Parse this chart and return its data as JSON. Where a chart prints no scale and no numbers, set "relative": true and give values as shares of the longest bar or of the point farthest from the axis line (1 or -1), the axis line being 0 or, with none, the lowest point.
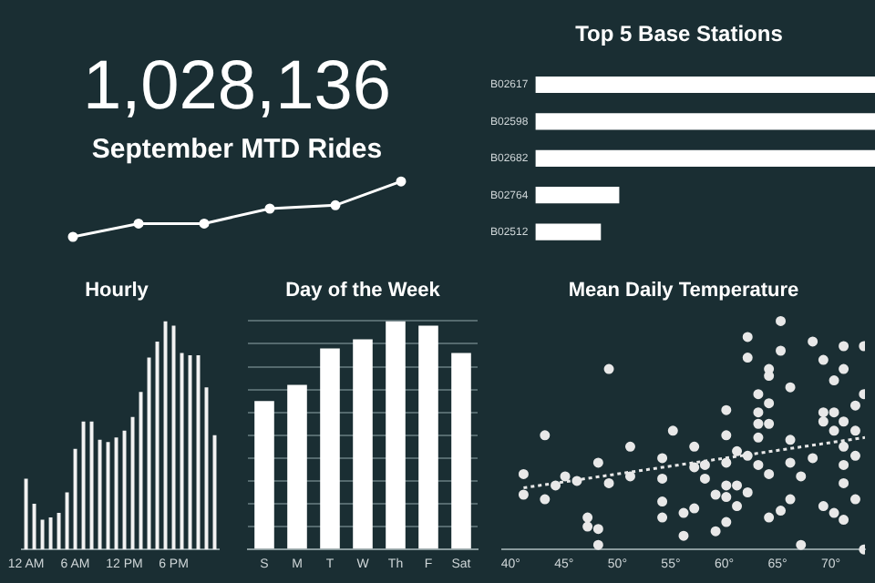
{
  "chart_data": [
    {
      "type": "line",
      "title": "1,028,136",
      "subtitle": "September MTD Rides",
      "categories": [
        null,
        null,
        null,
        null,
        null,
        null
      ],
      "values": [
        0,
        0.24,
        0.24,
        0.51,
        0.57,
        1
      ],
      "color": "#ffffff",
      "relative": true,
      "marker": "circle",
      "tick_labels": false
    },
    {
      "type": "bar",
      "orientation": "horizontal",
      "title": "Top 5 Base Stations",
      "categories": [
        "B02617",
        "B02598",
        "B02682",
        "B02764",
        "B02512"
      ],
      "values": [
        1,
        1,
        1,
        0.247,
        0.193
      ],
      "color": "#ffffff",
      "relative": true,
      "tick_labels": "y"
    },
    {
      "type": "bar",
      "title": "Hourly",
      "categories": [
        "12 AM",
        null,
        null,
        null,
        null,
        null,
        "6 AM",
        null,
        null,
        null,
        null,
        null,
        "12 PM",
        null,
        null,
        null,
        null,
        null,
        "6 PM",
        null,
        null,
        null,
        null,
        null
      ],
      "values": [
        0.31,
        0.2,
        0.13,
        0.14,
        0.16,
        0.25,
        0.44,
        0.56,
        0.56,
        0.48,
        0.47,
        0.49,
        0.52,
        0.58,
        0.69,
        0.84,
        0.91,
        1,
        0.98,
        0.86,
        0.85,
        0.85,
        0.71,
        0.5
      ],
      "color": "#f2f2f2",
      "relative": true,
      "tick_labels": "x"
    },
    {
      "type": "bar",
      "title": "Day of the Week",
      "categories": [
        "S",
        "M",
        "T",
        "W",
        "Th",
        "F",
        "Sat"
      ],
      "values": [
        0.65,
        0.72,
        0.88,
        0.92,
        1,
        0.98,
        0.86
      ],
      "color": "#ffffff",
      "relative": true,
      "grid": "y",
      "tick_labels": "x"
    },
    {
      "type": "scatter",
      "title": "Mean Daily Temperature",
      "relative": true,
      "marker": "circle",
      "tick_labels": "x",
      "xlim": [
        39.2,
        73.2
      ],
      "xticks": [
        {
          "value": 40,
          "label": "40°"
        },
        {
          "value": 45,
          "label": "45°"
        },
        {
          "value": 50,
          "label": "50°"
        },
        {
          "value": 55,
          "label": "55°"
        },
        {
          "value": 60,
          "label": "60°"
        },
        {
          "value": 65,
          "label": "65°"
        },
        {
          "value": 70,
          "label": "70°"
        }
      ],
      "series": [
        {
          "color": "#e8e8e8",
          "x": [
            41.2,
            41.2,
            43.2,
            43.2,
            44.2,
            45.1,
            46.2,
            47.2,
            47.2,
            48.2,
            48.2,
            48.2,
            49.2,
            49.2,
            51.2,
            51.2,
            54.2,
            54.2,
            54.2,
            54.2,
            55.2,
            56.2,
            56.2,
            57.2,
            57.2,
            57.2,
            58.2,
            58.2,
            59.2,
            59.2,
            60.2,
            60.2,
            60.2,
            60.2,
            60.2,
            60.2,
            61.2,
            61.2,
            61.2,
            62.2,
            62.2,
            62.2,
            62.2,
            63.2,
            63.2,
            63.2,
            63.2,
            63.2,
            64.2,
            64.2,
            64.2,
            64.2,
            64.2,
            64.2,
            65.3,
            65.3,
            65.3,
            66.2,
            66.2,
            66.2,
            66.2,
            67.2,
            67.2,
            68.3,
            68.3,
            69.3,
            69.3,
            69.3,
            69.3,
            70.3,
            70.3,
            70.3,
            70.3,
            71.2,
            71.2,
            71.2,
            71.2,
            71.2,
            71.2,
            71.2,
            72.3,
            72.3,
            72.3,
            72.3,
            73.1,
            73.1,
            73.1
          ],
          "values": [
            0.33,
            0.24,
            0.5,
            0.22,
            0.28,
            0.32,
            0.3,
            0.14,
            0.1,
            0.38,
            0.09,
            0.02,
            0.79,
            0.29,
            0.45,
            0.32,
            0.4,
            0.31,
            0.21,
            0.14,
            0.52,
            0.16,
            0.06,
            0.45,
            0.36,
            0.18,
            0.37,
            0.31,
            0.24,
            0.08,
            0.61,
            0.5,
            0.38,
            0.28,
            0.23,
            0.12,
            0.43,
            0.28,
            0.19,
            0.93,
            0.84,
            0.41,
            0.25,
            0.68,
            0.6,
            0.55,
            0.49,
            0.37,
            0.79,
            0.76,
            0.64,
            0.55,
            0.33,
            0.14,
            1,
            0.87,
            0.17,
            0.71,
            0.48,
            0.38,
            0.22,
            0.32,
            0.02,
            0.91,
            0.4,
            0.83,
            0.6,
            0.56,
            0.19,
            0.74,
            0.6,
            0.52,
            0.16,
            0.89,
            0.79,
            0.56,
            0.45,
            0.37,
            0.29,
            0.13,
            0.63,
            0.52,
            0.41,
            0.22,
            0.89,
            0.68,
            0
          ]
        },
        {
          "type": "line",
          "color": "#e8e8e8",
          "marker": "none",
          "line_style": "dotted",
          "x": [
            41.2,
            73.2
          ],
          "values": [
            0.27,
            0.49
          ]
        }
      ]
    }
  ]
}
